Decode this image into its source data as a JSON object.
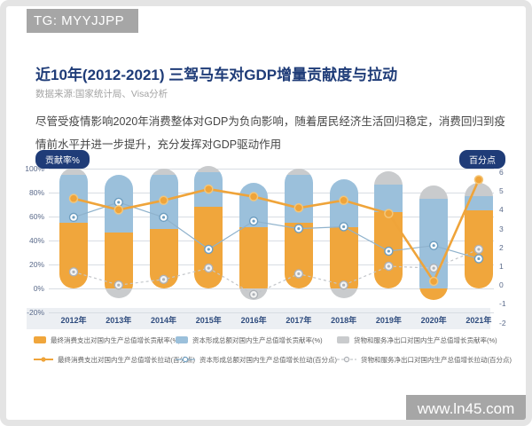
{
  "watermarks": {
    "top": "TG: MYYJJPP",
    "bottom": "www.ln45.com"
  },
  "header": {
    "title": "近10年(2012-2021) 三驾马车对GDP增量贡献度与拉动",
    "source": "数据来源:国家统计局、Visa分析",
    "description": "尽管受疫情影响2020年消费整体对GDP为负向影响，随着居民经济生活回归稳定，消费回归到疫情前水平并进一步提升，充分发挥对GDP驱动作用"
  },
  "chart_data": {
    "type": "bar",
    "subtype": "stacked-bars-with-lines",
    "categories": [
      "2012年",
      "2013年",
      "2014年",
      "2015年",
      "2016年",
      "2017年",
      "2018年",
      "2019年",
      "2020年",
      "2021年"
    ],
    "left_axis": {
      "label": "贡献率%",
      "ticks": [
        "100%",
        "80%",
        "60%",
        "40%",
        "20%",
        "0%",
        "-20%"
      ],
      "range": [
        -20,
        100
      ],
      "grid": true
    },
    "right_axis": {
      "label": "百分点",
      "ticks": [
        6,
        5,
        4,
        3,
        2,
        1,
        0,
        -1,
        -2
      ],
      "range": [
        -2,
        6
      ]
    },
    "bar_series": [
      {
        "name": "最终消费支出对国内生产总值增长贡献率(%)",
        "color": "#F0A63C",
        "values": [
          55,
          47,
          50,
          68,
          51,
          55,
          51,
          64,
          -10,
          65
        ]
      },
      {
        "name": "资本形成总额对国内生产总值增长贡献率(%)",
        "color": "#9BC0DB",
        "values": [
          40,
          48,
          45,
          29,
          37,
          40,
          40,
          23,
          75,
          12
        ]
      },
      {
        "name": "货物和服务净出口对国内生产总值增长贡献率(%)",
        "color": "#C9CBCD",
        "values": [
          6,
          -8,
          5,
          5,
          -10,
          5,
          -8,
          11,
          11,
          11
        ]
      }
    ],
    "line_series": [
      {
        "name": "最终消费支出对国内生产总值增长拉动(百分点)",
        "color": "#EFA43A",
        "style": "solid-thick",
        "values": [
          4.6,
          4.0,
          4.5,
          5.1,
          4.7,
          4.1,
          4.5,
          3.8,
          0.2,
          5.6
        ]
      },
      {
        "name": "资本形成总额对国内生产总值增长拉动(百分点)",
        "color": "#8FB2CC",
        "style": "solid-thin",
        "values": [
          3.6,
          4.4,
          3.6,
          1.9,
          3.4,
          3.0,
          3.1,
          1.8,
          2.1,
          1.4
        ]
      },
      {
        "name": "货物和服务净出口对国内生产总值增长拉动(百分点)",
        "color": "#C3C6CA",
        "style": "dashed",
        "values": [
          0.7,
          0.0,
          0.3,
          0.9,
          -0.5,
          0.6,
          0.0,
          1.0,
          0.9,
          1.9
        ]
      }
    ],
    "legend_position": "bottom"
  }
}
